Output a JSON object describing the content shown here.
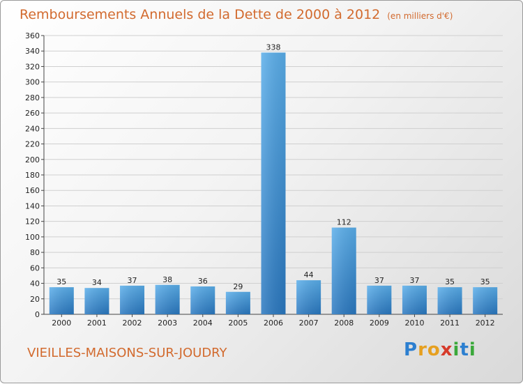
{
  "header": {
    "title": "Remboursements Annuels de la Dette de 2000 à 2012",
    "unit": "(en milliers d'€)"
  },
  "footer": {
    "city": "VIEILLES-MAISONS-SUR-JOUDRY",
    "logo_letters": [
      "P",
      "r",
      "o",
      "x",
      "i",
      "t",
      "i"
    ],
    "logo_colors": [
      "#2c7fd0",
      "#e6a020",
      "#e6a020",
      "#d63a2a",
      "#3aa83a",
      "#2c7fd0",
      "#3aa83a"
    ]
  },
  "chart_data": {
    "type": "bar",
    "title": "Remboursements Annuels de la Dette de 2000 à 2012",
    "ylabel": "en milliers d'€",
    "xlabel": "",
    "categories": [
      "2000",
      "2001",
      "2002",
      "2003",
      "2004",
      "2005",
      "2006",
      "2007",
      "2008",
      "2009",
      "2010",
      "2011",
      "2012"
    ],
    "values": [
      35,
      34,
      37,
      38,
      36,
      29,
      338,
      44,
      112,
      37,
      37,
      35,
      35
    ],
    "ylim": [
      0,
      360
    ],
    "yticks": [
      0,
      20,
      40,
      60,
      80,
      100,
      120,
      140,
      160,
      180,
      200,
      220,
      240,
      260,
      280,
      300,
      320,
      340,
      360
    ],
    "grid": true,
    "bar_color_top": "#5aaeea",
    "bar_color_bottom": "#2a78c0"
  }
}
